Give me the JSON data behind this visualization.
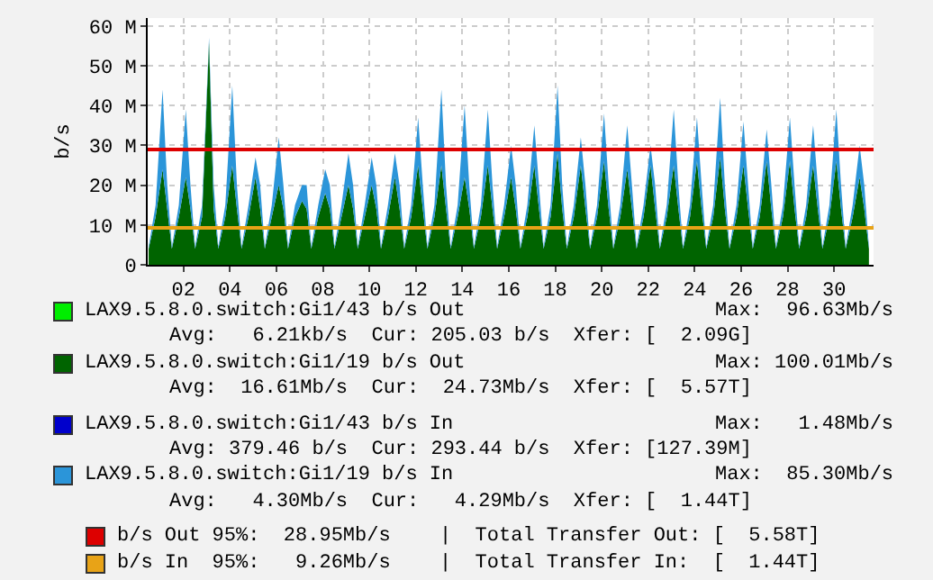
{
  "chart_data": {
    "type": "area",
    "stacked": true,
    "ylabel": "b/s",
    "x": [
      0.5,
      0.8,
      1.1,
      1.3,
      1.5,
      1.8,
      2.1,
      2.3,
      2.5,
      2.8,
      3.1,
      3.3,
      3.5,
      3.8,
      4.1,
      4.3,
      4.5,
      4.8,
      5.1,
      5.3,
      5.5,
      5.8,
      6.1,
      6.3,
      6.5,
      6.8,
      7.1,
      7.3,
      7.5,
      7.8,
      8.1,
      8.3,
      8.5,
      8.8,
      9.1,
      9.3,
      9.5,
      9.8,
      10.1,
      10.3,
      10.5,
      10.8,
      11.1,
      11.3,
      11.5,
      11.8,
      12.1,
      12.3,
      12.5,
      12.8,
      13.1,
      13.3,
      13.5,
      13.8,
      14.1,
      14.3,
      14.5,
      14.8,
      15.1,
      15.3,
      15.5,
      15.8,
      16.1,
      16.3,
      16.5,
      16.8,
      17.1,
      17.3,
      17.5,
      17.8,
      18.1,
      18.3,
      18.5,
      18.8,
      19.1,
      19.3,
      19.5,
      19.8,
      20.1,
      20.3,
      20.5,
      20.8,
      21.1,
      21.3,
      21.5,
      21.8,
      22.1,
      22.3,
      22.5,
      22.8,
      23.1,
      23.3,
      23.5,
      23.8,
      24.1,
      24.3,
      24.5,
      24.8,
      25.1,
      25.3,
      25.5,
      25.8,
      26.1,
      26.3,
      26.5,
      26.8,
      27.1,
      27.3,
      27.5,
      27.8,
      28.1,
      28.3,
      28.5,
      28.8,
      29.1,
      29.3,
      29.5,
      29.8,
      30.1,
      30.3,
      30.5,
      30.8,
      31.1,
      31.3,
      31.5
    ],
    "series": [
      {
        "name": "LAX9.5.8.0.switch:Gi1/43 b/s Out",
        "color": "#00ee00",
        "values": [
          null,
          null,
          null,
          null,
          null,
          null,
          null,
          null,
          null,
          null,
          null,
          null,
          null,
          null,
          null,
          null,
          null,
          null,
          null,
          null,
          null,
          null,
          null,
          null,
          null,
          null,
          null,
          null,
          null,
          null,
          null,
          null,
          null,
          null,
          null,
          null,
          null,
          null,
          null,
          null,
          null,
          null,
          null,
          null,
          null,
          null,
          null,
          null,
          null,
          null,
          null,
          null,
          null,
          null,
          null,
          null,
          null,
          null,
          null,
          null,
          null,
          null,
          null,
          null,
          null,
          null,
          null,
          null,
          null,
          null,
          null,
          null,
          null,
          null,
          null,
          null,
          null,
          null,
          null,
          null,
          null,
          null,
          null,
          null,
          null,
          null,
          null,
          null,
          null,
          null,
          null,
          null,
          null,
          null,
          null,
          null,
          null,
          null,
          null,
          null,
          null,
          null,
          null,
          null,
          null,
          null,
          null,
          null,
          null,
          null,
          null,
          null,
          null,
          null,
          null,
          null,
          null,
          null,
          null,
          null,
          null,
          null,
          null,
          null,
          null
        ]
      },
      {
        "name": "LAX9.5.8.0.switch:Gi1/19 b/s Out",
        "color": "#006400",
        "values": [
          4,
          12,
          24,
          14,
          4,
          12,
          22,
          14,
          4,
          12,
          56,
          14,
          4,
          12,
          25,
          14,
          4,
          12,
          22,
          14,
          4,
          12,
          20,
          14,
          4,
          12,
          16,
          14,
          4,
          12,
          18,
          14,
          4,
          12,
          20,
          14,
          4,
          12,
          20,
          14,
          4,
          12,
          22,
          14,
          4,
          12,
          25,
          14,
          4,
          12,
          25,
          14,
          4,
          12,
          22,
          14,
          4,
          12,
          25,
          14,
          4,
          12,
          22,
          14,
          4,
          12,
          25,
          14,
          4,
          12,
          28,
          14,
          4,
          12,
          25,
          14,
          4,
          12,
          26,
          14,
          4,
          12,
          24,
          14,
          4,
          12,
          25,
          14,
          4,
          12,
          25,
          14,
          4,
          12,
          26,
          14,
          4,
          12,
          27,
          14,
          4,
          12,
          25,
          14,
          4,
          12,
          26,
          14,
          4,
          12,
          26,
          14,
          4,
          12,
          25,
          14,
          4,
          12,
          26,
          14,
          4,
          12,
          22,
          14,
          4
        ]
      },
      {
        "name": "LAX9.5.8.0.switch:Gi1/43 b/s In",
        "color": "#0000cc",
        "values": [
          null,
          null,
          null,
          null,
          null,
          null,
          null,
          null,
          null,
          null,
          null,
          null,
          null,
          null,
          null,
          null,
          null,
          null,
          null,
          null,
          null,
          null,
          null,
          null,
          null,
          null,
          null,
          null,
          null,
          null,
          null,
          null,
          null,
          null,
          null,
          null,
          null,
          null,
          null,
          null,
          null,
          null,
          null,
          null,
          null,
          null,
          null,
          null,
          null,
          null,
          null,
          null,
          null,
          null,
          null,
          null,
          null,
          null,
          null,
          null,
          null,
          null,
          null,
          null,
          null,
          null,
          null,
          null,
          null,
          null,
          null,
          null,
          null,
          null,
          null,
          null,
          null,
          null,
          null,
          null,
          null,
          null,
          null,
          null,
          null,
          null,
          null,
          null,
          null,
          null,
          null,
          null,
          null,
          null,
          null,
          null,
          null,
          null,
          null,
          null,
          null,
          null,
          null,
          null,
          null,
          null,
          null,
          null,
          null,
          null,
          null,
          null,
          null,
          null,
          null,
          null,
          null,
          null,
          null,
          null,
          null,
          null,
          null,
          null,
          null
        ]
      },
      {
        "name": "LAX9.5.8.0.switch:Gi1/19 b/s In",
        "color": "#2b95d9",
        "values": [
          0.5,
          3,
          20,
          6,
          0.5,
          3,
          17,
          6,
          0.5,
          3,
          1,
          6,
          0.5,
          3,
          20,
          6,
          0.5,
          3,
          5,
          6,
          0.5,
          3,
          12,
          6,
          0.5,
          3,
          4,
          6,
          0.5,
          3,
          6,
          6,
          0.5,
          3,
          8,
          6,
          0.5,
          3,
          7,
          6,
          0.5,
          3,
          6,
          6,
          0.5,
          3,
          12,
          6,
          0.5,
          3,
          19,
          6,
          0.5,
          3,
          18,
          6,
          0.5,
          3,
          14,
          6,
          0.5,
          3,
          8,
          6,
          0.5,
          3,
          10,
          6,
          0.5,
          3,
          17,
          6,
          0.5,
          3,
          7,
          6,
          0.5,
          3,
          12,
          6,
          0.5,
          3,
          11,
          6,
          0.5,
          3,
          5,
          6,
          0.5,
          3,
          14,
          6,
          0.5,
          3,
          11,
          6,
          0.5,
          3,
          15,
          6,
          0.5,
          3,
          11,
          6,
          0.5,
          3,
          8,
          6,
          0.5,
          3,
          11,
          6,
          0.5,
          3,
          10,
          6,
          0.5,
          3,
          13,
          6,
          0.5,
          3,
          8,
          6,
          0.5
        ]
      }
    ],
    "xlim": [
      0.46,
      31.7
    ],
    "xticks": [
      {
        "value": 2,
        "label": "02"
      },
      {
        "value": 4,
        "label": "04"
      },
      {
        "value": 6,
        "label": "06"
      },
      {
        "value": 8,
        "label": "08"
      },
      {
        "value": 10,
        "label": "10"
      },
      {
        "value": 12,
        "label": "12"
      },
      {
        "value": 14,
        "label": "14"
      },
      {
        "value": 16,
        "label": "16"
      },
      {
        "value": 18,
        "label": "18"
      },
      {
        "value": 20,
        "label": "20"
      },
      {
        "value": 22,
        "label": "22"
      },
      {
        "value": 24,
        "label": "24"
      },
      {
        "value": 26,
        "label": "26"
      },
      {
        "value": 28,
        "label": "28"
      },
      {
        "value": 30,
        "label": "30"
      }
    ],
    "ylim": [
      0,
      62
    ],
    "yticks": [
      {
        "value": 0,
        "label": "0"
      },
      {
        "value": 10,
        "label": "10 M"
      },
      {
        "value": 20,
        "label": "20 M"
      },
      {
        "value": 30,
        "label": "30 M"
      },
      {
        "value": 40,
        "label": "40 M"
      },
      {
        "value": 50,
        "label": "50 M"
      },
      {
        "value": 60,
        "label": "60 M"
      }
    ],
    "ref_lines": [
      {
        "axis": "y",
        "value": 28.95,
        "label": "b/s Out 95%:  28.95Mb/s",
        "color": "#dd0000"
      },
      {
        "axis": "y",
        "value": 9.26,
        "label": "b/s In  95%:   9.26Mb/s",
        "color": "#e8a317"
      }
    ],
    "annotations": [
      "Max:  96.63Mb/s",
      "Avg:   6.21kb/s  Cur: 205.03 b/s  Xfer: [  2.09G]",
      "Max: 100.01Mb/s",
      "Avg:  16.61Mb/s  Cur:  24.73Mb/s  Xfer: [  5.57T]",
      "Max:   1.48Mb/s",
      "Avg: 379.46 b/s  Cur: 293.44 b/s  Xfer: [127.39M]",
      "Max:  85.30Mb/s",
      "Avg:   4.30Mb/s  Cur:   4.29Mb/s  Xfer: [  1.44T]",
      "|  Total Transfer Out: [  5.58T]",
      "|  Total Transfer In:  [  1.44T]"
    ],
    "grid": true,
    "legend": "bottom"
  }
}
